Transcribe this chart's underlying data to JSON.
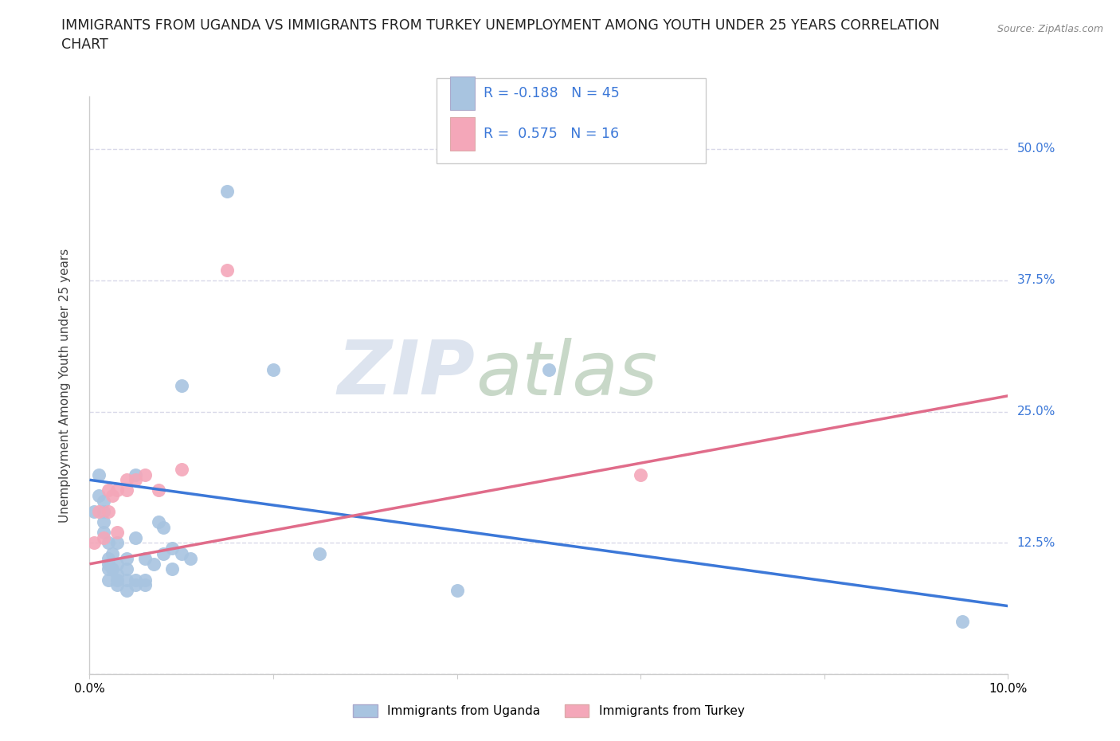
{
  "title_line1": "IMMIGRANTS FROM UGANDA VS IMMIGRANTS FROM TURKEY UNEMPLOYMENT AMONG YOUTH UNDER 25 YEARS CORRELATION",
  "title_line2": "CHART",
  "source": "Source: ZipAtlas.com",
  "ylabel": "Unemployment Among Youth under 25 years",
  "xmin": 0.0,
  "xmax": 0.1,
  "ymin": 0.0,
  "ymax": 0.55,
  "yticks": [
    0.0,
    0.125,
    0.25,
    0.375,
    0.5
  ],
  "ytick_labels": [
    "",
    "12.5%",
    "25.0%",
    "37.5%",
    "50.0%"
  ],
  "xticks": [
    0.0,
    0.02,
    0.04,
    0.06,
    0.08,
    0.1
  ],
  "xtick_labels": [
    "0.0%",
    "",
    "",
    "",
    "",
    "10.0%"
  ],
  "legend_text1": "R = -0.188   N = 45",
  "legend_text2": "R =  0.575   N = 16",
  "uganda_color": "#a8c4e0",
  "turkey_color": "#f4a7b9",
  "uganda_line_color": "#3c78d8",
  "turkey_line_color": "#e06c8a",
  "background_color": "#ffffff",
  "watermark_zip": "ZIP",
  "watermark_atlas": "atlas",
  "uganda_x": [
    0.0005,
    0.001,
    0.001,
    0.0015,
    0.0015,
    0.0015,
    0.0015,
    0.002,
    0.002,
    0.002,
    0.002,
    0.002,
    0.0025,
    0.0025,
    0.003,
    0.003,
    0.003,
    0.003,
    0.003,
    0.004,
    0.004,
    0.004,
    0.004,
    0.005,
    0.005,
    0.005,
    0.005,
    0.006,
    0.006,
    0.006,
    0.007,
    0.0075,
    0.008,
    0.008,
    0.009,
    0.009,
    0.01,
    0.01,
    0.011,
    0.015,
    0.02,
    0.025,
    0.04,
    0.05,
    0.095
  ],
  "uganda_y": [
    0.155,
    0.17,
    0.19,
    0.135,
    0.145,
    0.155,
    0.165,
    0.09,
    0.1,
    0.105,
    0.11,
    0.125,
    0.1,
    0.115,
    0.085,
    0.09,
    0.095,
    0.105,
    0.125,
    0.08,
    0.09,
    0.1,
    0.11,
    0.085,
    0.09,
    0.13,
    0.19,
    0.085,
    0.09,
    0.11,
    0.105,
    0.145,
    0.115,
    0.14,
    0.1,
    0.12,
    0.115,
    0.275,
    0.11,
    0.46,
    0.29,
    0.115,
    0.08,
    0.29,
    0.05
  ],
  "turkey_x": [
    0.0005,
    0.001,
    0.0015,
    0.002,
    0.002,
    0.0025,
    0.003,
    0.003,
    0.004,
    0.004,
    0.005,
    0.006,
    0.0075,
    0.01,
    0.015,
    0.06
  ],
  "turkey_y": [
    0.125,
    0.155,
    0.13,
    0.155,
    0.175,
    0.17,
    0.135,
    0.175,
    0.175,
    0.185,
    0.185,
    0.19,
    0.175,
    0.195,
    0.385,
    0.19
  ],
  "uganda_trend_x": [
    0.0,
    0.1
  ],
  "uganda_trend_y": [
    0.185,
    0.065
  ],
  "turkey_trend_x": [
    0.0,
    0.1
  ],
  "turkey_trend_y": [
    0.105,
    0.265
  ],
  "grid_color": "#d8d8e8",
  "title_fontsize": 12.5,
  "axis_label_fontsize": 11,
  "tick_fontsize": 11,
  "legend_fontsize": 12.5
}
